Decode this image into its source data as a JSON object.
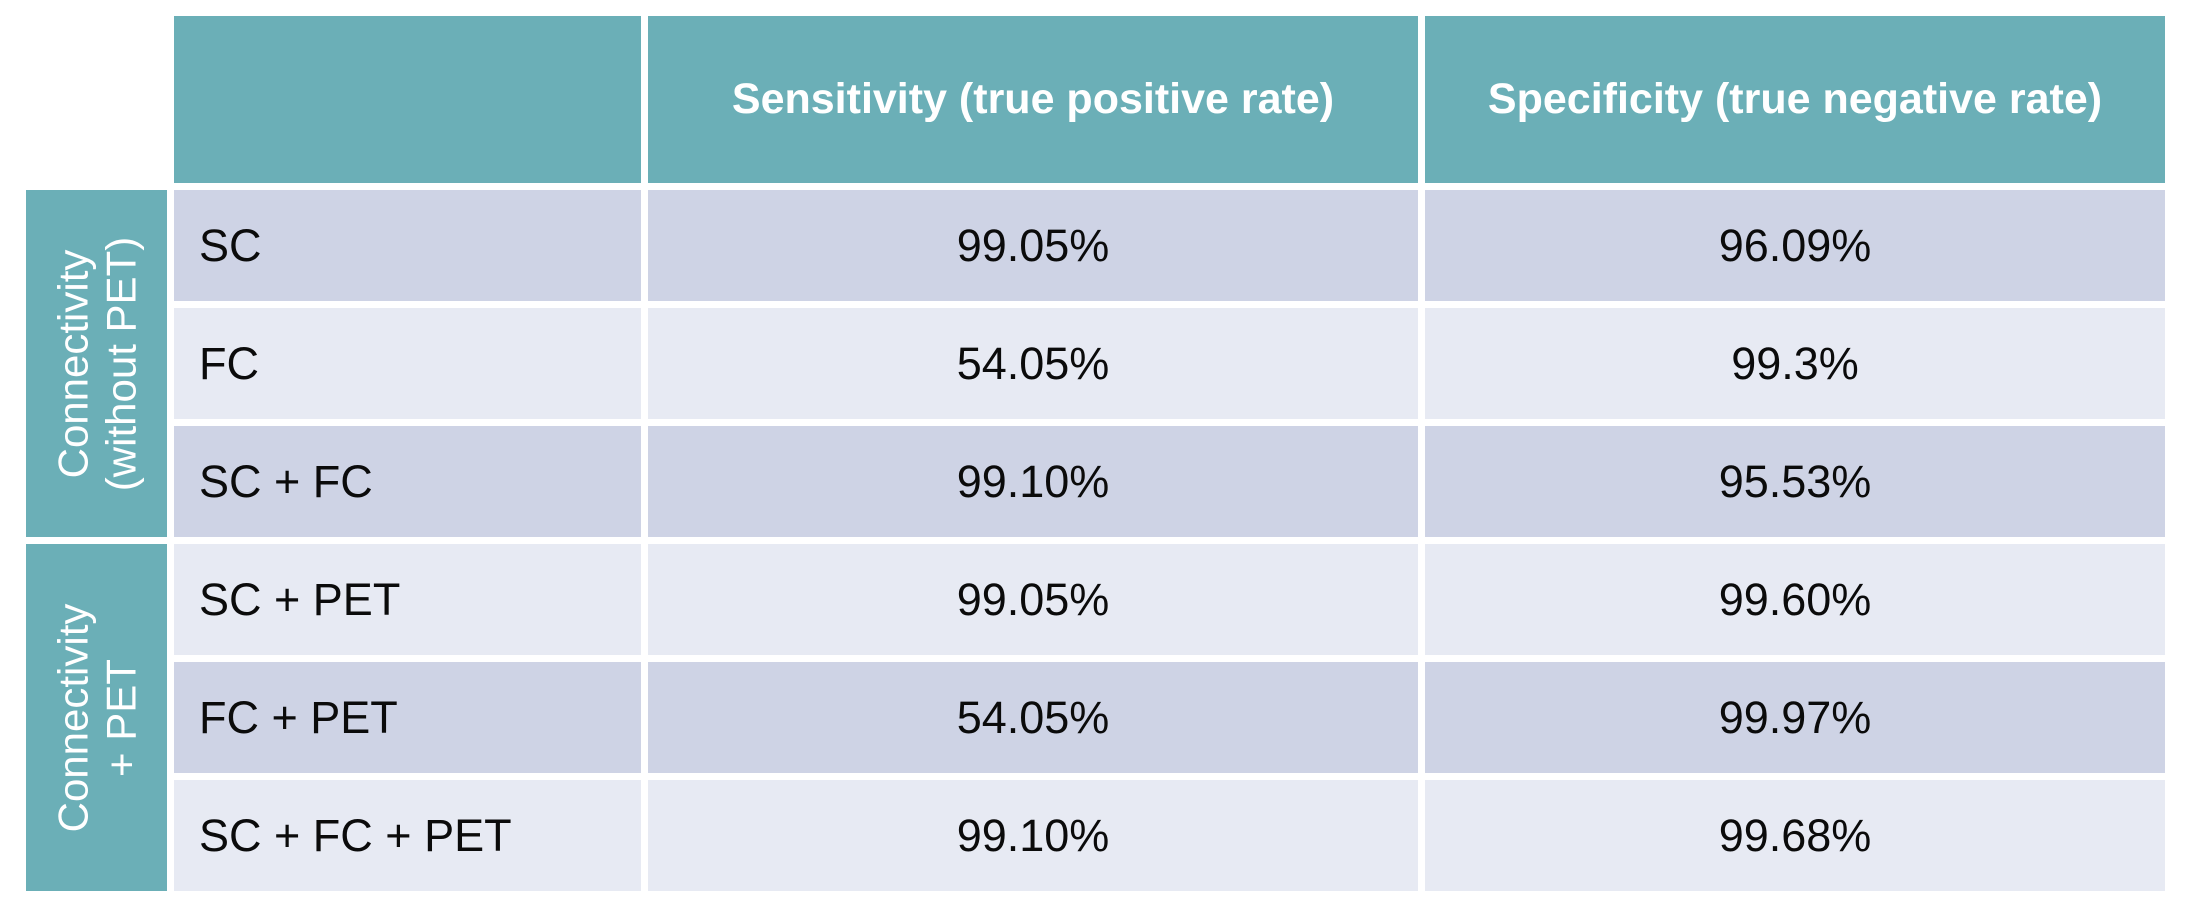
{
  "colors": {
    "header_teal": "#6BAFB7",
    "row_dark": "#CED3E5",
    "row_light": "#E7EAF3",
    "header_text": "#FFFFFF",
    "cell_text": "#0B0B0B",
    "background": "#FFFFFF"
  },
  "chart_data": {
    "type": "table",
    "columns": [
      "",
      "Sensitivity (true positive rate)",
      "Specificity (true negative rate)"
    ],
    "row_groups": [
      {
        "label": "Connectivity (without PET)",
        "label_lines": [
          "Connectivity",
          "(without PET)"
        ],
        "row_indexes": [
          0,
          1,
          2
        ]
      },
      {
        "label": "Connectivity + PET",
        "label_lines": [
          "Connectivity",
          "+ PET"
        ],
        "row_indexes": [
          3,
          4,
          5
        ]
      }
    ],
    "rows": [
      {
        "group": "Connectivity (without PET)",
        "method": "SC",
        "sensitivity": "99.05%",
        "specificity": "96.09%"
      },
      {
        "group": "Connectivity (without PET)",
        "method": "FC",
        "sensitivity": "54.05%",
        "specificity": "99.3%"
      },
      {
        "group": "Connectivity (without PET)",
        "method": "SC + FC",
        "sensitivity": "99.10%",
        "specificity": "95.53%"
      },
      {
        "group": "Connectivity + PET",
        "method": "SC + PET",
        "sensitivity": "99.05%",
        "specificity": "99.60%"
      },
      {
        "group": "Connectivity + PET",
        "method": "FC + PET",
        "sensitivity": "54.05%",
        "specificity": "99.97%"
      },
      {
        "group": "Connectivity + PET",
        "method": "SC + FC + PET",
        "sensitivity": "99.10%",
        "specificity": "99.68%"
      }
    ]
  }
}
